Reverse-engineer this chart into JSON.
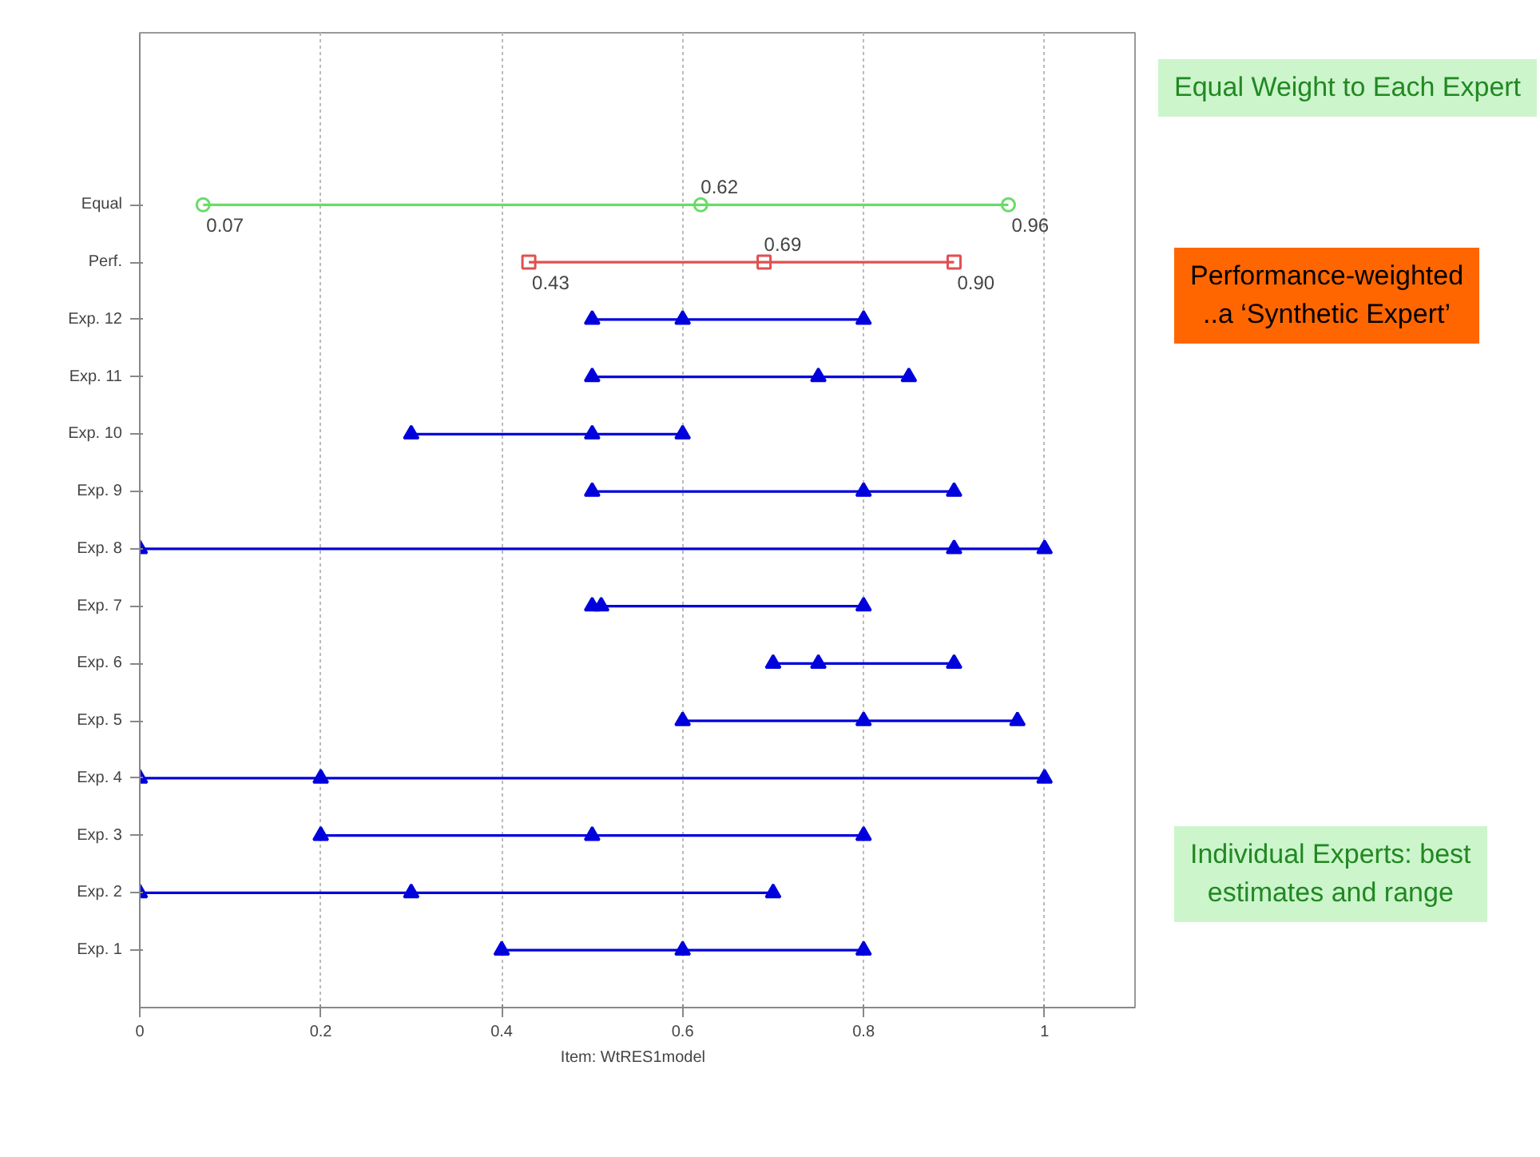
{
  "chart_data": {
    "type": "scatter",
    "orientation": "horizontal",
    "categories": [
      "Equal",
      "Perf.",
      "Exp. 12",
      "Exp. 11",
      "Exp. 10",
      "Exp. 9",
      "Exp. 8",
      "Exp. 7",
      "Exp. 6",
      "Exp. 5",
      "Exp. 4",
      "Exp. 3",
      "Exp. 2",
      "Exp. 1"
    ],
    "series": [
      {
        "type": "bar",
        "colors": [
          "#66dd66",
          "#e05050",
          "#0000dd",
          "#0000dd",
          "#0000dd",
          "#0000dd",
          "#0000dd",
          "#0000dd",
          "#0000dd",
          "#0000dd",
          "#0000dd",
          "#0000dd",
          "#0000dd",
          "#0000dd"
        ],
        "base": [
          0.07,
          0.43,
          0.5,
          0.5,
          0.3,
          0.5,
          0,
          0.5,
          0.7,
          0.6,
          0,
          0.2,
          0,
          0.4
        ],
        "values": [
          0.89,
          0.47,
          0.3,
          0.35,
          0.3,
          0.4,
          1,
          0.3,
          0.2,
          0.37,
          1,
          0.6,
          0.7,
          0.4
        ]
      },
      {
        "color": "#66dd66",
        "marker": "circle",
        "values": [
          0.07,
          null,
          null,
          null,
          null,
          null,
          null,
          null,
          null,
          null,
          null,
          null,
          null,
          null
        ]
      },
      {
        "color": "#66dd66",
        "marker": "circle",
        "values": [
          0.62,
          null,
          null,
          null,
          null,
          null,
          null,
          null,
          null,
          null,
          null,
          null,
          null,
          null
        ]
      },
      {
        "color": "#66dd66",
        "marker": "circle",
        "values": [
          0.96,
          null,
          null,
          null,
          null,
          null,
          null,
          null,
          null,
          null,
          null,
          null,
          null,
          null
        ]
      },
      {
        "color": "#e05050",
        "marker": "square",
        "values": [
          null,
          0.43,
          null,
          null,
          null,
          null,
          null,
          null,
          null,
          null,
          null,
          null,
          null,
          null
        ]
      },
      {
        "color": "#e05050",
        "marker": "square",
        "values": [
          null,
          0.69,
          null,
          null,
          null,
          null,
          null,
          null,
          null,
          null,
          null,
          null,
          null,
          null
        ]
      },
      {
        "color": "#e05050",
        "marker": "square",
        "values": [
          null,
          0.9,
          null,
          null,
          null,
          null,
          null,
          null,
          null,
          null,
          null,
          null,
          null,
          null
        ]
      },
      {
        "color": "#0000dd",
        "marker": "triangle",
        "values": [
          null,
          null,
          0.5,
          0.5,
          0.3,
          0.5,
          0,
          0.5,
          0.7,
          0.6,
          0,
          0.2,
          0,
          0.4
        ]
      },
      {
        "color": "#0000dd",
        "marker": "triangle",
        "values": [
          null,
          null,
          0.6,
          0.75,
          0.5,
          0.8,
          0.9,
          0.51,
          0.75,
          0.8,
          0.2,
          0.5,
          0.3,
          0.6
        ]
      },
      {
        "color": "#0000dd",
        "marker": "triangle",
        "values": [
          null,
          null,
          0.8,
          0.85,
          0.6,
          0.9,
          1,
          0.8,
          0.9,
          0.97,
          1,
          0.8,
          0.7,
          0.8
        ]
      }
    ],
    "xlabel": "Item:   WtRES1model",
    "xlim": [
      0,
      1.1
    ],
    "xticks": [
      0,
      0.2,
      0.4,
      0.6,
      0.8,
      1
    ],
    "grid": "x",
    "annotations": [
      {
        "text": "0.07",
        "x": 0.07,
        "y": "Equal"
      },
      {
        "text": "0.62",
        "x": 0.62,
        "y": "Equal"
      },
      {
        "text": "0.96",
        "x": 0.96,
        "y": "Equal"
      },
      {
        "text": "0.43",
        "x": 0.43,
        "y": "Perf."
      },
      {
        "text": "0.69",
        "x": 0.69,
        "y": "Perf."
      },
      {
        "text": "0.90",
        "x": 0.9,
        "y": "Perf."
      },
      "Equal Weight to Each Expert",
      "Performance-weighted\n..a ‘Synthetic Expert’",
      "Individual Experts: best\nestimates and range"
    ]
  }
}
